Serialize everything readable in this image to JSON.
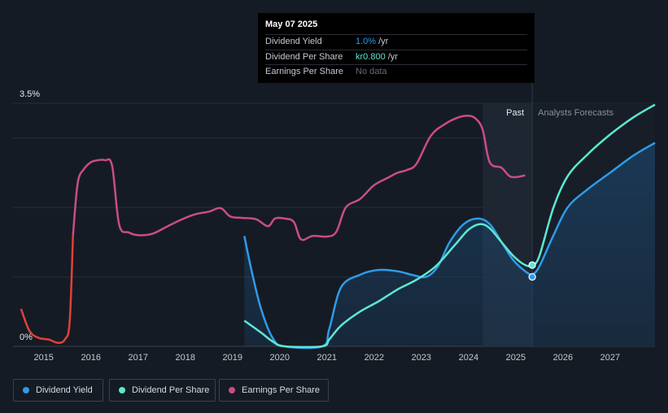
{
  "tooltip": {
    "date": "May 07 2025",
    "rows": [
      {
        "label": "Dividend Yield",
        "value": "1.0%",
        "unit": "/yr",
        "color": "#2f9be8"
      },
      {
        "label": "Dividend Per Share",
        "value": "kr0.800",
        "unit": "/yr",
        "color": "#5ee7d2"
      },
      {
        "label": "Earnings Per Share",
        "value": "No data",
        "unit": "",
        "color": "#666b73"
      }
    ]
  },
  "legend": [
    {
      "label": "Dividend Yield",
      "color": "#2f9be8"
    },
    {
      "label": "Dividend Per Share",
      "color": "#5ee7d2"
    },
    {
      "label": "Earnings Per Share",
      "color": "#c94c8a"
    }
  ],
  "chart_data": {
    "type": "line",
    "xlim": [
      2014.35,
      2027.95
    ],
    "ylim": [
      0,
      3.5
    ],
    "y_ticks": [
      {
        "v": 0,
        "label": "0%"
      },
      {
        "v": 3.5,
        "label": "3.5%"
      }
    ],
    "x_ticks": [
      2015,
      2016,
      2017,
      2018,
      2019,
      2020,
      2021,
      2022,
      2023,
      2024,
      2025,
      2026,
      2027
    ],
    "past_label": "Past",
    "forecast_label": "Analysts Forecasts",
    "forecast_start": 2025.35,
    "past_band_start": 2024.3,
    "series": [
      {
        "name": "Dividend Yield",
        "color": "#2f9be8",
        "fill": true,
        "points": [
          [
            2019.25,
            1.59
          ],
          [
            2019.4,
            1.1
          ],
          [
            2019.6,
            0.55
          ],
          [
            2019.85,
            0.12
          ],
          [
            2020.1,
            0
          ],
          [
            2020.9,
            0
          ],
          [
            2021.05,
            0.25
          ],
          [
            2021.3,
            0.85
          ],
          [
            2021.7,
            1.03
          ],
          [
            2022.1,
            1.1
          ],
          [
            2022.5,
            1.08
          ],
          [
            2022.8,
            1.03
          ],
          [
            2023.1,
            1.0
          ],
          [
            2023.35,
            1.15
          ],
          [
            2023.6,
            1.5
          ],
          [
            2023.9,
            1.76
          ],
          [
            2024.2,
            1.84
          ],
          [
            2024.45,
            1.76
          ],
          [
            2024.7,
            1.5
          ],
          [
            2024.95,
            1.24
          ],
          [
            2025.2,
            1.08
          ],
          [
            2025.35,
            1.04
          ],
          [
            2025.5,
            1.15
          ],
          [
            2025.8,
            1.6
          ],
          [
            2026.1,
            2.0
          ],
          [
            2026.5,
            2.25
          ],
          [
            2027.0,
            2.5
          ],
          [
            2027.5,
            2.75
          ],
          [
            2027.95,
            2.93
          ]
        ]
      },
      {
        "name": "Dividend Per Share",
        "color": "#5ee7d2",
        "fill": false,
        "points": [
          [
            2019.25,
            0.37
          ],
          [
            2019.6,
            0.2
          ],
          [
            2019.85,
            0.07
          ],
          [
            2020.1,
            0
          ],
          [
            2020.9,
            0
          ],
          [
            2021.05,
            0.1
          ],
          [
            2021.3,
            0.3
          ],
          [
            2021.7,
            0.5
          ],
          [
            2022.1,
            0.65
          ],
          [
            2022.5,
            0.82
          ],
          [
            2022.9,
            0.96
          ],
          [
            2023.3,
            1.15
          ],
          [
            2023.7,
            1.45
          ],
          [
            2024.0,
            1.68
          ],
          [
            2024.25,
            1.76
          ],
          [
            2024.45,
            1.7
          ],
          [
            2024.7,
            1.5
          ],
          [
            2024.95,
            1.3
          ],
          [
            2025.2,
            1.17
          ],
          [
            2025.35,
            1.17
          ],
          [
            2025.5,
            1.3
          ],
          [
            2025.8,
            2.0
          ],
          [
            2026.1,
            2.45
          ],
          [
            2026.5,
            2.75
          ],
          [
            2027.0,
            3.05
          ],
          [
            2027.5,
            3.3
          ],
          [
            2027.95,
            3.48
          ]
        ]
      },
      {
        "name": "Earnings Per Share",
        "color": "#c94c8a",
        "fill": false,
        "points": [
          [
            2015.62,
            1.59
          ],
          [
            2015.72,
            2.35
          ],
          [
            2015.85,
            2.55
          ],
          [
            2016.0,
            2.65
          ],
          [
            2016.15,
            2.68
          ],
          [
            2016.3,
            2.68
          ],
          [
            2016.45,
            2.6
          ],
          [
            2016.6,
            1.75
          ],
          [
            2016.8,
            1.64
          ],
          [
            2017.0,
            1.6
          ],
          [
            2017.3,
            1.62
          ],
          [
            2017.6,
            1.72
          ],
          [
            2017.9,
            1.82
          ],
          [
            2018.2,
            1.9
          ],
          [
            2018.5,
            1.94
          ],
          [
            2018.75,
            1.99
          ],
          [
            2018.95,
            1.87
          ],
          [
            2019.2,
            1.85
          ],
          [
            2019.5,
            1.83
          ],
          [
            2019.75,
            1.73
          ],
          [
            2019.9,
            1.84
          ],
          [
            2020.1,
            1.84
          ],
          [
            2020.3,
            1.79
          ],
          [
            2020.45,
            1.54
          ],
          [
            2020.7,
            1.59
          ],
          [
            2021.0,
            1.58
          ],
          [
            2021.2,
            1.65
          ],
          [
            2021.4,
            2.0
          ],
          [
            2021.7,
            2.12
          ],
          [
            2022.0,
            2.32
          ],
          [
            2022.3,
            2.43
          ],
          [
            2022.5,
            2.5
          ],
          [
            2022.7,
            2.54
          ],
          [
            2022.9,
            2.63
          ],
          [
            2023.2,
            3.03
          ],
          [
            2023.5,
            3.2
          ],
          [
            2023.8,
            3.3
          ],
          [
            2024.0,
            3.32
          ],
          [
            2024.15,
            3.28
          ],
          [
            2024.3,
            3.12
          ],
          [
            2024.45,
            2.65
          ],
          [
            2024.7,
            2.57
          ],
          [
            2024.9,
            2.44
          ],
          [
            2025.2,
            2.46
          ]
        ]
      }
    ],
    "early_eps": {
      "color": "#e0413a",
      "points": [
        [
          2014.52,
          0.54
        ],
        [
          2014.7,
          0.22
        ],
        [
          2014.9,
          0.12
        ],
        [
          2015.1,
          0.1
        ],
        [
          2015.3,
          0.05
        ],
        [
          2015.45,
          0.1
        ],
        [
          2015.55,
          0.35
        ],
        [
          2015.62,
          1.59
        ]
      ]
    },
    "tooltip_year": 2025.35,
    "tooltip_markers": [
      {
        "v": 1.0,
        "color": "#2f9be8"
      },
      {
        "v": 1.17,
        "color": "#5ee7d2"
      }
    ]
  }
}
